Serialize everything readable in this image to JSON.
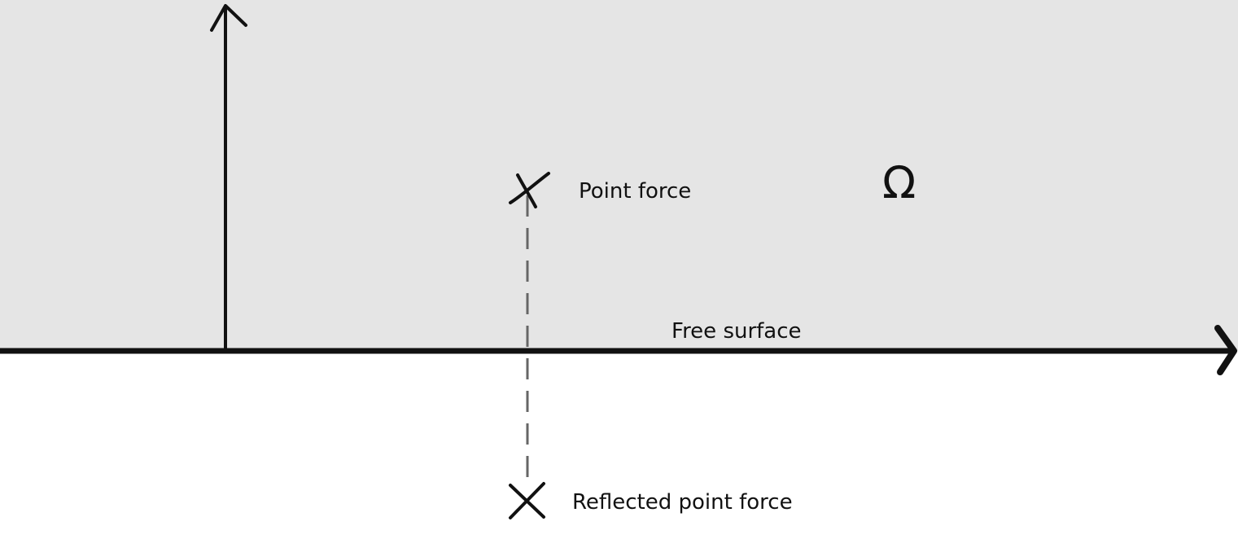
{
  "labels": {
    "point_force": "Point force",
    "free_surface": "Free surface",
    "reflected_point_force": "Reflected point force",
    "domain_symbol": "Ω"
  },
  "colors": {
    "domain_fill": "#e5e5e5",
    "background": "#ffffff",
    "ink": "#111111",
    "dashed_line": "#666666"
  },
  "icons": {
    "point_force_marker": "cross-icon",
    "reflected_marker": "cross-icon",
    "axis_arrow": "arrow-head-icon"
  }
}
